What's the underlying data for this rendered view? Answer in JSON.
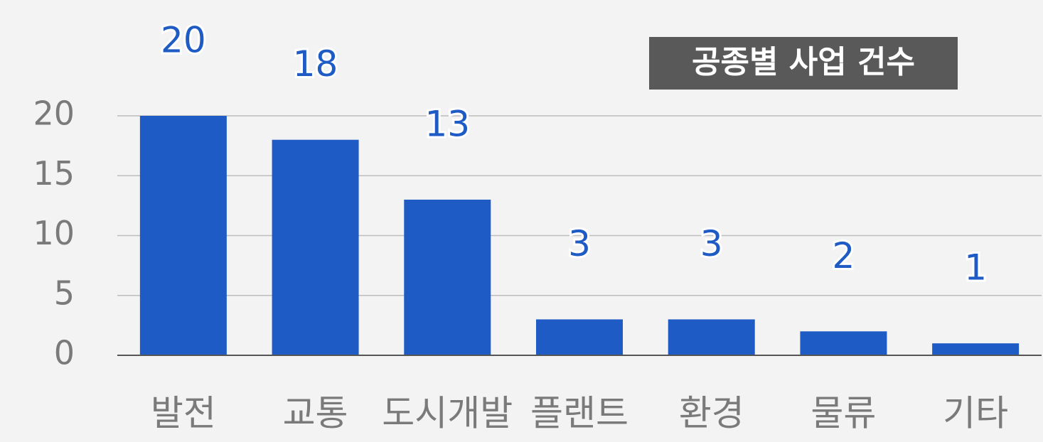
{
  "chart_data": {
    "type": "bar",
    "title": "공종별 사업 건수",
    "categories": [
      "발전",
      "교통",
      "도시개발",
      "플랜트",
      "환경",
      "물류",
      "기타"
    ],
    "values": [
      20,
      18,
      13,
      3,
      3,
      2,
      1
    ],
    "color": "#1f5bc4",
    "ylim": [
      0,
      20
    ],
    "yticks": [
      0,
      5,
      10,
      15,
      20
    ],
    "grid": true
  }
}
